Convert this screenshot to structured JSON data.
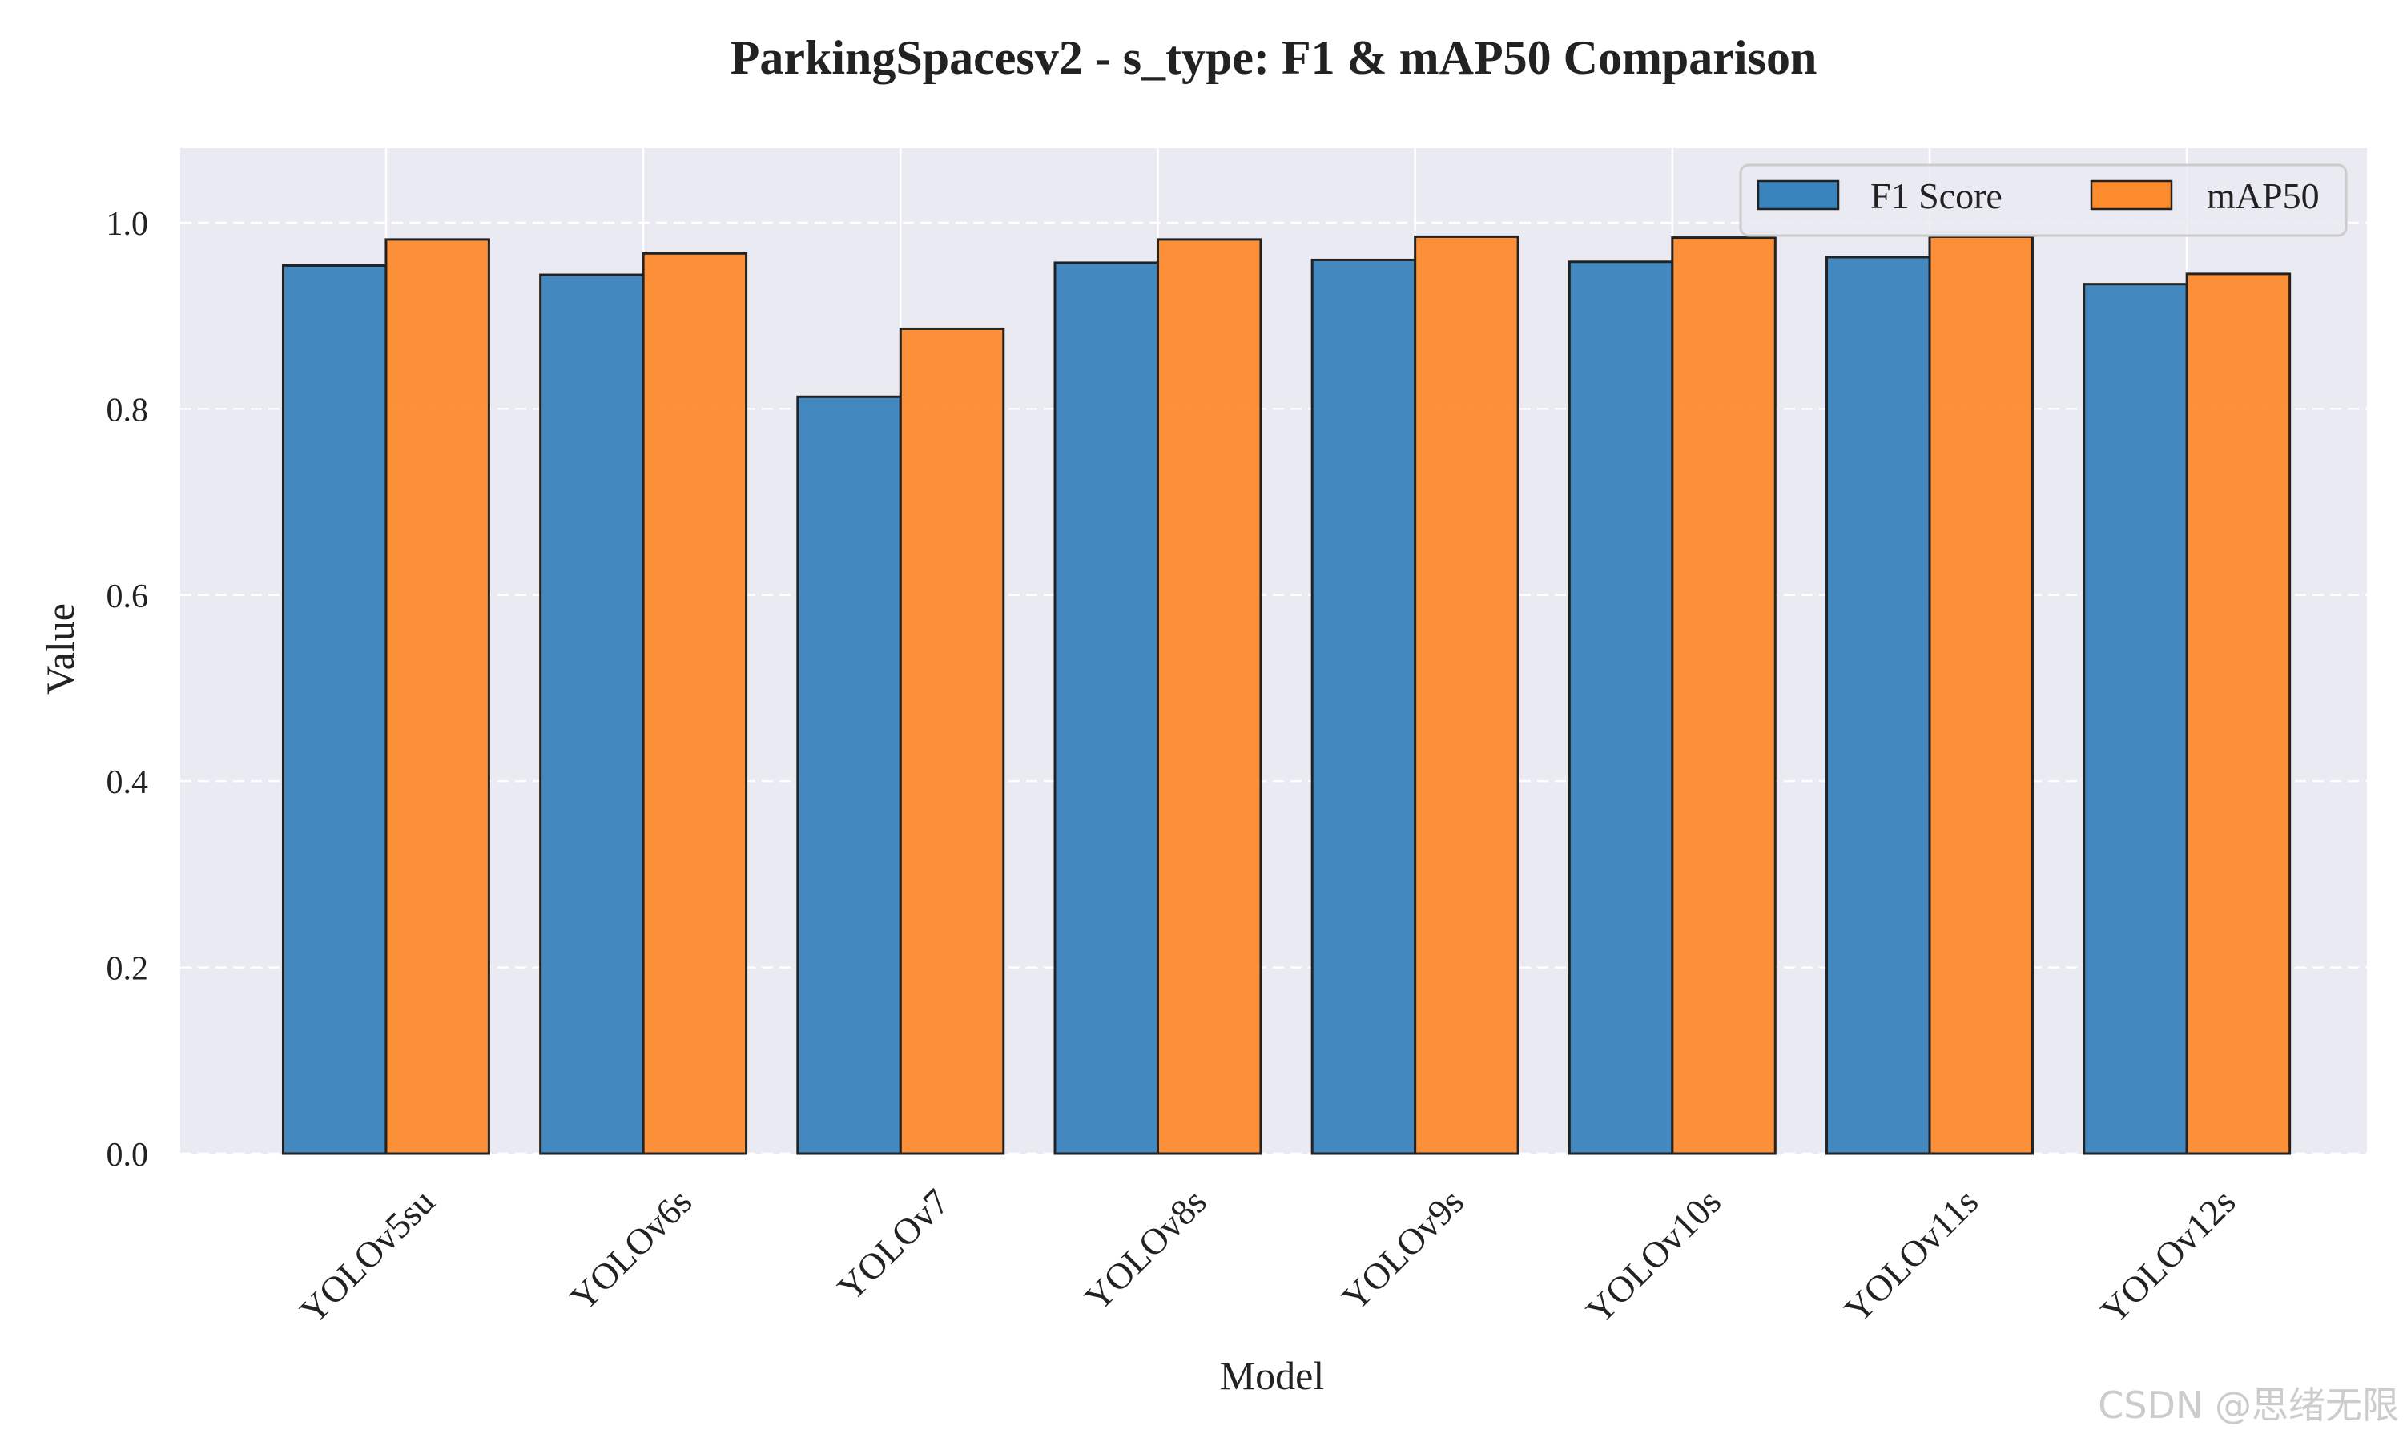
{
  "chart_data": {
    "type": "bar",
    "title": "ParkingSpacesv2 - s_type: F1 & mAP50 Comparison",
    "xlabel": "Model",
    "ylabel": "Value",
    "ylim": [
      0,
      1.08
    ],
    "yticks": [
      0.0,
      0.2,
      0.4,
      0.6,
      0.8,
      1.0
    ],
    "ytick_labels": [
      "0.0",
      "0.2",
      "0.4",
      "0.6",
      "0.8",
      "1.0"
    ],
    "grid": true,
    "legend_position": "top-right",
    "categories": [
      "YOLOv5su",
      "YOLOv6s",
      "YOLOv7",
      "YOLOv8s",
      "YOLOv9s",
      "YOLOv10s",
      "YOLOv11s",
      "YOLOv12s"
    ],
    "series": [
      {
        "name": "F1 Score",
        "color": "#3a84bd",
        "values": [
          0.954,
          0.944,
          0.813,
          0.957,
          0.96,
          0.958,
          0.963,
          0.934
        ]
      },
      {
        "name": "mAP50",
        "color": "#fc8b2e",
        "values": [
          0.982,
          0.967,
          0.886,
          0.982,
          0.985,
          0.984,
          0.985,
          0.945
        ]
      }
    ]
  },
  "style": {
    "plot_background": "#eaeaf2",
    "grid_color": "#ffffff",
    "bar_edge_color": "#222222",
    "text_color": "#222222",
    "watermark_color": "#cccccc"
  },
  "watermark": "CSDN @思绪无限"
}
